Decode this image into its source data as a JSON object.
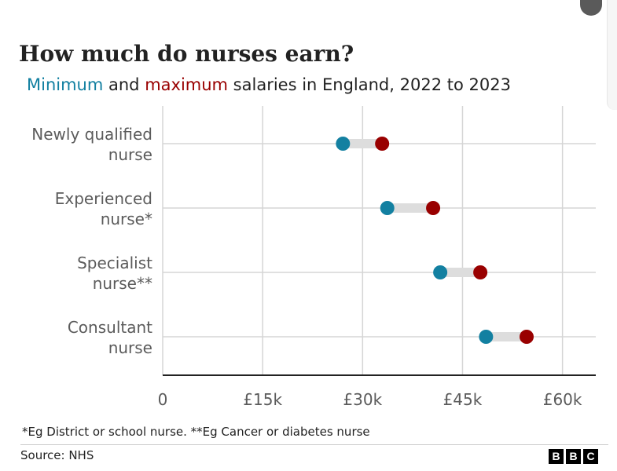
{
  "title": "How much do nurses earn?",
  "subtitle": {
    "min_word": "Minimum",
    "and_word": " and ",
    "max_word": "maximum",
    "rest": " salaries in England, 2022 to 2023"
  },
  "categories": [
    {
      "line1": "Newly qualified",
      "line2": "nurse"
    },
    {
      "line1": "Experienced",
      "line2": "nurse*"
    },
    {
      "line1": "Specialist",
      "line2": "nurse**"
    },
    {
      "line1": "Consultant",
      "line2": "nurse"
    }
  ],
  "colors": {
    "min": "#1380a1",
    "max": "#990000",
    "connector": "#dddddd",
    "grid": "#d5d5d5",
    "axis": "#222222",
    "tick_text": "#5b5b5b"
  },
  "chart_data": {
    "type": "dumbbell",
    "orientation": "horizontal",
    "title": "How much do nurses earn?",
    "subtitle": "Minimum and maximum salaries in England, 2022 to 2023",
    "categories": [
      "Newly qualified nurse",
      "Experienced nurse*",
      "Specialist nurse**",
      "Consultant nurse"
    ],
    "series": [
      {
        "name": "Minimum",
        "values": [
          27055,
          33706,
          41659,
          48526
        ]
      },
      {
        "name": "Maximum",
        "values": [
          32934,
          40588,
          47672,
          54619
        ]
      }
    ],
    "xlim": [
      0,
      65000
    ],
    "xticks": [
      0,
      15000,
      30000,
      45000,
      60000
    ],
    "xtick_labels": [
      "0",
      "£15k",
      "£30k",
      "£45k",
      "£60k"
    ],
    "grid": true
  },
  "note": "*Eg District or school nurse. **Eg Cancer or diabetes nurse",
  "source": "Source: NHS",
  "logo": [
    "B",
    "B",
    "C"
  ]
}
